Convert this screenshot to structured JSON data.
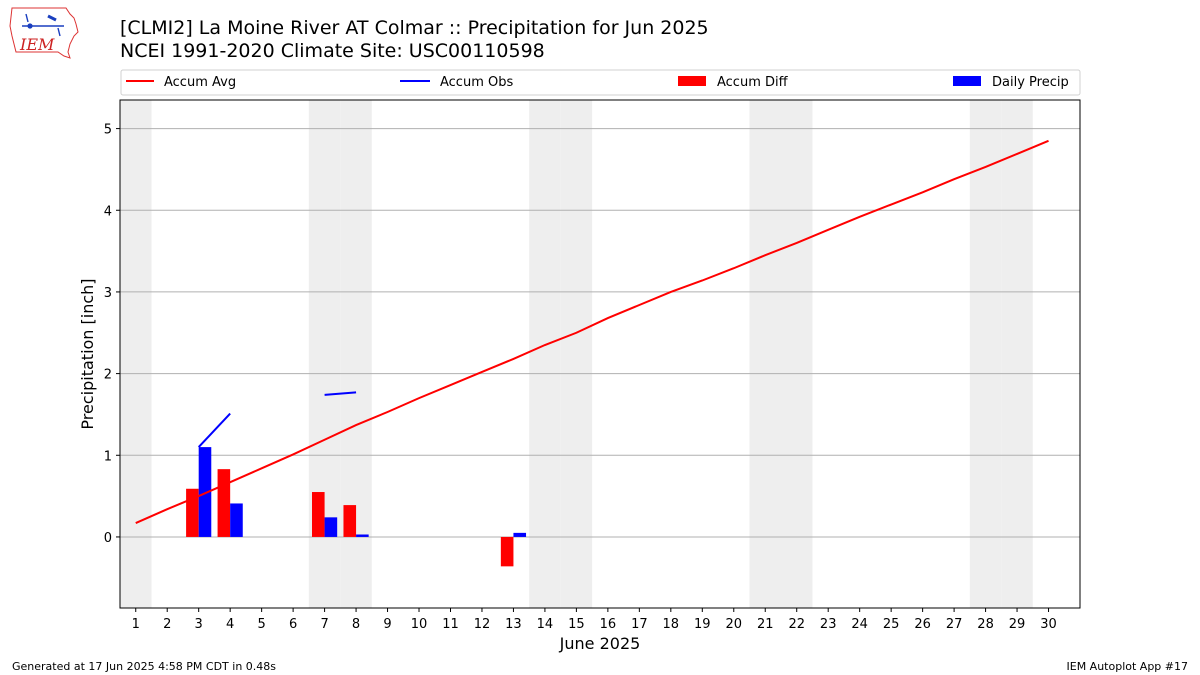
{
  "header": {
    "title_line1": "[CLMI2] La Moine River  AT Colmar :: Precipitation for Jun 2025",
    "title_line2": "NCEI 1991-2020 Climate Site: USC00110598",
    "logo_text": "IEM"
  },
  "footer": {
    "left": "Generated at 17 Jun 2025 4:58 PM CDT in 0.48s",
    "right": "IEM Autoplot App #17"
  },
  "colors": {
    "avg": "#ff0000",
    "obs": "#0000ff",
    "diff": "#ff0000",
    "daily": "#0000ff",
    "weekend_shade": "#eeeeee",
    "grid": "#b0b0b0"
  },
  "chart_data": {
    "type": "bar",
    "xlabel": "June 2025",
    "ylabel": "Precipitation [inch]",
    "xlim": [
      0.5,
      31.0
    ],
    "ylim": [
      -0.87,
      5.35
    ],
    "grid": "horizontal",
    "legend_placement": "top, above plot",
    "x_ticks": [
      "1",
      "2",
      "3",
      "4",
      "5",
      "6",
      "7",
      "8",
      "9",
      "10",
      "11",
      "12",
      "13",
      "14",
      "15",
      "16",
      "17",
      "18",
      "19",
      "20",
      "21",
      "22",
      "23",
      "24",
      "25",
      "26",
      "27",
      "28",
      "29",
      "30"
    ],
    "y_ticks": [
      "0",
      "1",
      "2",
      "3",
      "4",
      "5"
    ],
    "weekend_days": [
      1,
      7,
      8,
      14,
      15,
      21,
      22,
      28,
      29
    ],
    "legend": [
      "Accum Avg",
      "Accum Obs",
      "Accum Diff",
      "Daily Precip"
    ],
    "accum_avg": {
      "name": "Accum Avg",
      "x": [
        1,
        2,
        3,
        4,
        5,
        6,
        7,
        8,
        9,
        10,
        11,
        12,
        13,
        14,
        15,
        16,
        17,
        18,
        19,
        20,
        21,
        22,
        23,
        24,
        25,
        26,
        27,
        28,
        29,
        30
      ],
      "values": [
        0.17,
        0.34,
        0.5,
        0.67,
        0.84,
        1.01,
        1.19,
        1.37,
        1.53,
        1.7,
        1.86,
        2.02,
        2.18,
        2.35,
        2.5,
        2.68,
        2.84,
        3.0,
        3.14,
        3.29,
        3.45,
        3.6,
        3.76,
        3.92,
        4.07,
        4.22,
        4.38,
        4.53,
        4.69,
        4.85
      ]
    },
    "accum_obs": {
      "name": "Accum Obs",
      "segments": [
        {
          "x": [
            3,
            4
          ],
          "values": [
            1.1,
            1.51
          ]
        },
        {
          "x": [
            7,
            8
          ],
          "values": [
            1.74,
            1.77
          ]
        }
      ]
    },
    "accum_diff": {
      "name": "Accum Diff",
      "x": [
        3,
        4,
        7,
        8,
        13
      ],
      "values": [
        0.59,
        0.83,
        0.55,
        0.39,
        -0.36
      ]
    },
    "daily_precip": {
      "name": "Daily Precip",
      "x": [
        3,
        4,
        7,
        8,
        13
      ],
      "values": [
        1.1,
        0.41,
        0.24,
        0.03,
        0.05
      ]
    }
  }
}
